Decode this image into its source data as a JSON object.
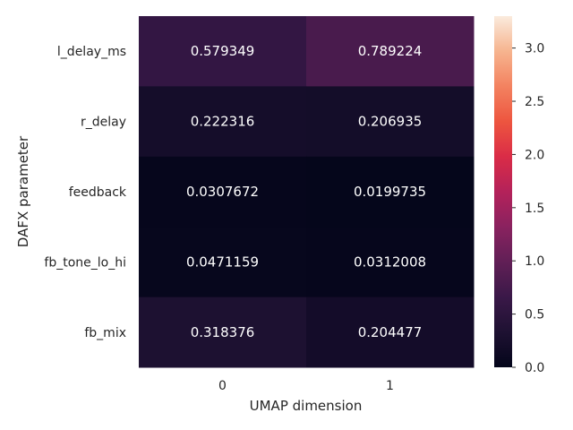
{
  "chart_data": {
    "type": "heatmap",
    "title": "",
    "xlabel": "UMAP dimension",
    "ylabel": "DAFX parameter",
    "x_categories": [
      "0",
      "1"
    ],
    "y_categories": [
      "l_delay_ms",
      "r_delay",
      "feedback",
      "fb_tone_lo_hi",
      "fb_mix"
    ],
    "values": [
      [
        0.579349,
        0.789224
      ],
      [
        0.222316,
        0.206935
      ],
      [
        0.0307672,
        0.0199735
      ],
      [
        0.0471159,
        0.0312008
      ],
      [
        0.318376,
        0.204477
      ]
    ],
    "cell_labels": [
      [
        "0.579349",
        "0.789224"
      ],
      [
        "0.222316",
        "0.206935"
      ],
      [
        "0.0307672",
        "0.0199735"
      ],
      [
        "0.0471159",
        "0.0312008"
      ],
      [
        "0.318376",
        "0.204477"
      ]
    ],
    "colorbar": {
      "vmin": 0.0,
      "vmax": 3.3,
      "ticks": [
        "0.0",
        "0.5",
        "1.0",
        "1.5",
        "2.0",
        "2.5",
        "3.0"
      ],
      "colormap": "rocket"
    },
    "grid": false,
    "annotation_color": "#ffffff",
    "tick_color": "#262626"
  }
}
